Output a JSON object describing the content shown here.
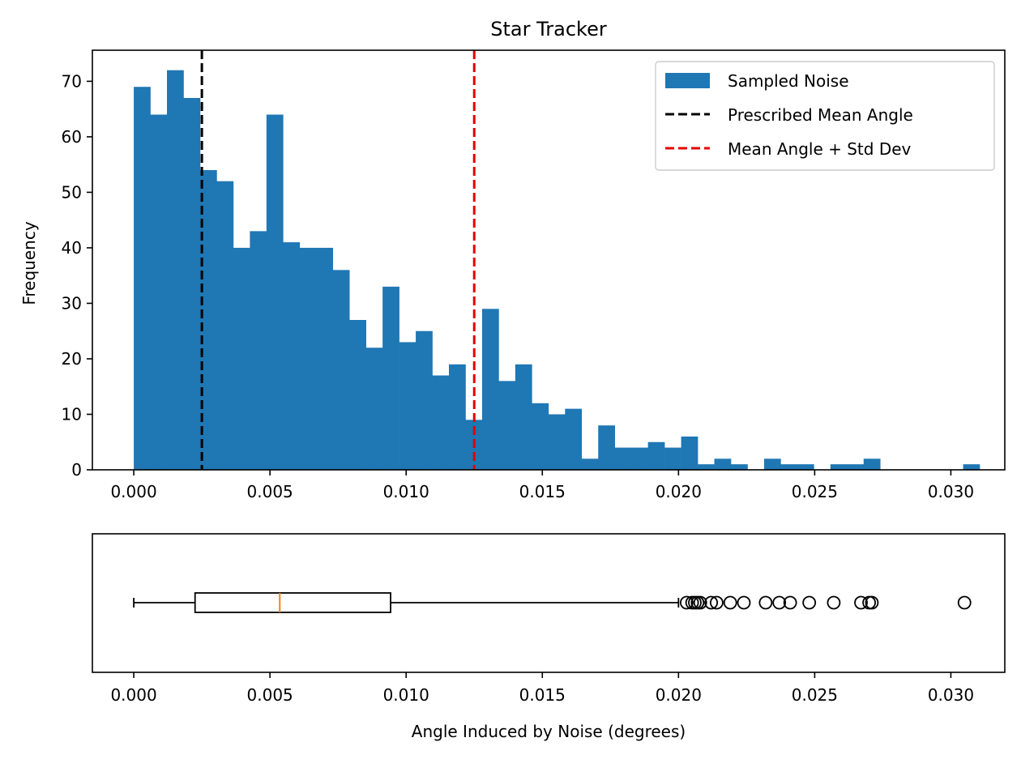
{
  "chart_data": [
    {
      "type": "bar",
      "kind": "histogram",
      "title": "Star Tracker",
      "xlabel": "",
      "ylabel": "Frequency",
      "xlim": [
        -0.00152,
        0.03198
      ],
      "ylim": [
        0,
        75.6
      ],
      "xticks": [
        "0.000",
        "0.005",
        "0.010",
        "0.015",
        "0.020",
        "0.025",
        "0.030"
      ],
      "xtick_values": [
        0,
        0.005,
        0.01,
        0.015,
        0.02,
        0.025,
        0.03
      ],
      "yticks": [
        "0",
        "10",
        "20",
        "30",
        "40",
        "50",
        "60",
        "70"
      ],
      "ytick_values": [
        0,
        10,
        20,
        30,
        40,
        50,
        60,
        70
      ],
      "bin_start": 0,
      "bin_width": 0.000609,
      "counts": [
        69,
        64,
        72,
        67,
        54,
        52,
        40,
        43,
        64,
        41,
        40,
        40,
        36,
        27,
        22,
        33,
        23,
        25,
        17,
        19,
        9,
        29,
        16,
        19,
        12,
        10,
        11,
        2,
        8,
        4,
        4,
        5,
        4,
        6,
        1,
        2,
        1,
        0,
        2,
        1,
        1,
        0,
        1,
        1,
        2,
        0,
        0,
        0,
        0,
        0,
        1
      ],
      "bar_color": "#1f77b4",
      "vlines": [
        {
          "name": "Prescribed Mean Angle",
          "x": 0.0025,
          "color": "#000000",
          "style": "dashed"
        },
        {
          "name": "Mean Angle + Std Dev",
          "x": 0.0125,
          "color": "#e50000",
          "style": "dashed"
        }
      ],
      "legend": {
        "placement": "top-right",
        "entries": [
          {
            "label": "Sampled Noise",
            "kind": "patch",
            "color": "#1f77b4"
          },
          {
            "label": "Prescribed Mean Angle",
            "kind": "dashed-line",
            "color": "#000000"
          },
          {
            "label": "Mean Angle + Std Dev",
            "kind": "dashed-line",
            "color": "#e50000"
          }
        ]
      },
      "grid": false
    },
    {
      "type": "boxplot",
      "orientation": "horizontal",
      "xlabel": "Angle Induced by Noise (degrees)",
      "ylabel": "",
      "xlim": [
        -0.00152,
        0.03198
      ],
      "xticks": [
        "0.000",
        "0.005",
        "0.010",
        "0.015",
        "0.020",
        "0.025",
        "0.030"
      ],
      "xtick_values": [
        0,
        0.005,
        0.01,
        0.015,
        0.02,
        0.025,
        0.03
      ],
      "whisker_low": 0.0,
      "q1": 0.00225,
      "median": 0.00536,
      "q3": 0.00943,
      "whisker_high": 0.02,
      "median_color": "#ff7f0e",
      "outliers": [
        0.0203,
        0.0205,
        0.0206,
        0.0207,
        0.0208,
        0.0212,
        0.0214,
        0.0219,
        0.0224,
        0.0232,
        0.0237,
        0.0241,
        0.0248,
        0.0257,
        0.0267,
        0.027,
        0.0271,
        0.0305
      ],
      "grid": false
    }
  ]
}
